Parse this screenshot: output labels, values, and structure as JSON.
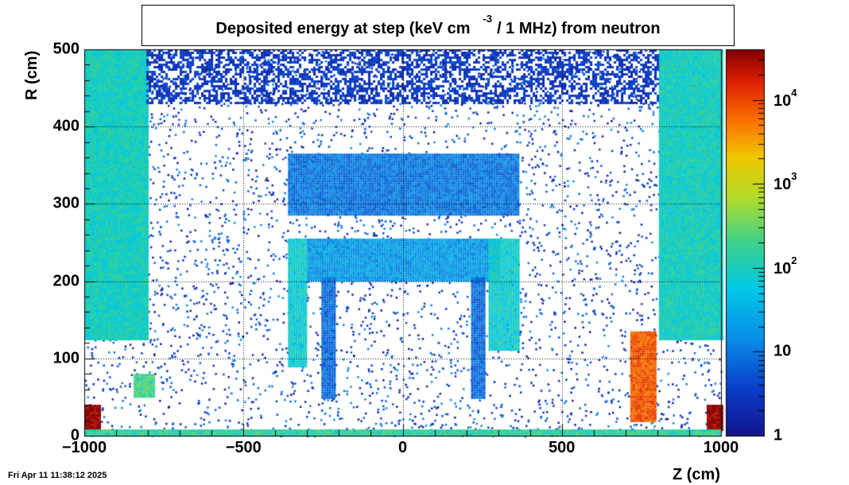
{
  "title": {
    "main": "Deposited energy at step (keV cm",
    "superscript": "-3",
    "rest": "/ 1 MHz)  from   neutron"
  },
  "timestamp": "Fri Apr 11 11:38:12 2025",
  "chart_data": {
    "type": "heatmap",
    "xlabel": "Z (cm)",
    "ylabel": "R (cm)",
    "xlim": [
      -1000,
      1000
    ],
    "ylim": [
      0,
      500
    ],
    "zscale": "log",
    "zlim": [
      1,
      40000
    ],
    "grid": true,
    "palette": "rainbow (blue-cyan-green-yellow-red)",
    "x_ticks": [
      {
        "value": -1000,
        "label": "−1000"
      },
      {
        "value": -500,
        "label": "−500"
      },
      {
        "value": 0,
        "label": "0"
      },
      {
        "value": 500,
        "label": "500"
      },
      {
        "value": 1000,
        "label": "1000"
      }
    ],
    "y_ticks": [
      {
        "value": 0,
        "label": "0"
      },
      {
        "value": 100,
        "label": "100"
      },
      {
        "value": 200,
        "label": "200"
      },
      {
        "value": 300,
        "label": "300"
      },
      {
        "value": 400,
        "label": "400"
      },
      {
        "value": 500,
        "label": "500"
      }
    ],
    "z_ticks": [
      {
        "value": 1,
        "label": "1",
        "exp": ""
      },
      {
        "value": 10,
        "label": "10",
        "exp": ""
      },
      {
        "value": 100,
        "label": "10",
        "exp": "2"
      },
      {
        "value": 1000,
        "label": "10",
        "exp": "3"
      },
      {
        "value": 10000,
        "label": "10",
        "exp": "4"
      }
    ],
    "regions": [
      {
        "name": "endcap-left",
        "z": [
          -1000,
          -805
        ],
        "r": [
          125,
          500
        ],
        "level": 100
      },
      {
        "name": "endcap-right",
        "z": [
          805,
          1000
        ],
        "r": [
          125,
          500
        ],
        "level": 100
      },
      {
        "name": "shield-top-band",
        "z": [
          -805,
          805
        ],
        "r": [
          430,
          500
        ],
        "level": 3
      },
      {
        "name": "tube-upper",
        "z": [
          -360,
          360
        ],
        "r": [
          285,
          365
        ],
        "level": 10
      },
      {
        "name": "tube-lower",
        "z": [
          -300,
          300
        ],
        "r": [
          200,
          255
        ],
        "level": 20
      },
      {
        "name": "barrel-left",
        "z": [
          -360,
          -305
        ],
        "r": [
          90,
          255
        ],
        "level": 80
      },
      {
        "name": "barrel-right",
        "z": [
          270,
          365
        ],
        "r": [
          110,
          255
        ],
        "level": 80
      },
      {
        "name": "inner-left-column",
        "z": [
          -255,
          -215
        ],
        "r": [
          50,
          205
        ],
        "level": 8
      },
      {
        "name": "inner-right-column",
        "z": [
          215,
          255
        ],
        "r": [
          50,
          205
        ],
        "level": 8
      },
      {
        "name": "block-left",
        "z": [
          -845,
          -785
        ],
        "r": [
          50,
          80
        ],
        "level": 200
      },
      {
        "name": "beam-block-right",
        "z": [
          715,
          790
        ],
        "r": [
          20,
          135
        ],
        "level": 8000
      },
      {
        "name": "corner-left",
        "z": [
          -1000,
          -955
        ],
        "r": [
          8,
          40
        ],
        "level": 40000
      },
      {
        "name": "corner-right",
        "z": [
          955,
          1000
        ],
        "r": [
          8,
          40
        ],
        "level": 40000
      },
      {
        "name": "floor-strip",
        "z": [
          -1000,
          1000
        ],
        "r": [
          0,
          8
        ],
        "level": 150
      }
    ]
  }
}
